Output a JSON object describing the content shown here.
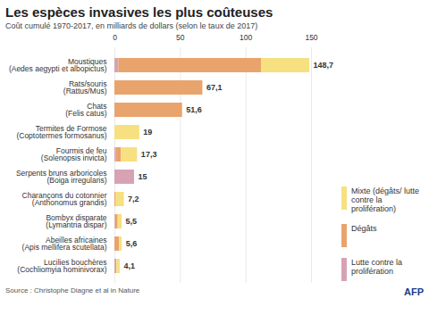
{
  "chart_data": {
    "type": "bar",
    "orientation": "horizontal",
    "stacked": true,
    "title": "Les espèces invasives les plus coûteuses",
    "subtitle": "Coût cumulé 1970-2017, en milliards de dollars (selon le taux de 2017)",
    "source": "Source : Christophe Diagne et al in Nature",
    "credit": "AFP",
    "categories": [
      "Moustiques",
      "Rats/souris",
      "Chats",
      "Termites de Formose",
      "Fourmis de feu",
      "Serpents bruns arboricoles",
      "Charançons du cotonnier",
      "Bombyx disparate",
      "Abeilles africaines",
      "Lucilies bouchères"
    ],
    "scientific_names": [
      "(Aedes aegypti et albopictus)",
      "(Rattus/Mus)",
      "(Felis catus)",
      "(Coptotermes formosanus)",
      "(Solenopsis invicta)",
      "(Boiga irregularis)",
      "(Anthonomus grandis)",
      "(Lymantria dispar)",
      "(Apis mellifera scutellata)",
      "(Cochliomyia hominivorax)"
    ],
    "series": [
      {
        "name": "Lutte contre la prolifération",
        "color": "#d7a3b4",
        "values": [
          3,
          0,
          0,
          0,
          1,
          15,
          0,
          0.5,
          0,
          1.5
        ]
      },
      {
        "name": "Dégâts",
        "color": "#e9a36c",
        "values": [
          109,
          67.1,
          51.6,
          0,
          4,
          0,
          1,
          2,
          3.5,
          0
        ]
      },
      {
        "name": "Mixte (dégâts/ lutte contre la prolifération)",
        "color": "#f6e07f",
        "values": [
          36.7,
          0,
          0,
          19,
          12.3,
          0,
          6.2,
          3,
          2.1,
          2.6
        ]
      }
    ],
    "totals": [
      148.7,
      67.1,
      51.6,
      19,
      17.3,
      15,
      7.2,
      5.5,
      5.6,
      4.1
    ],
    "total_labels": [
      "148,7",
      "67,1",
      "51,6",
      "19",
      "17,3",
      "15",
      "7,2",
      "5,5",
      "5,6",
      "4,1"
    ],
    "xlim": [
      0,
      150
    ],
    "xticks": [
      0,
      50,
      100,
      150
    ],
    "grid": true,
    "legend": "right"
  }
}
